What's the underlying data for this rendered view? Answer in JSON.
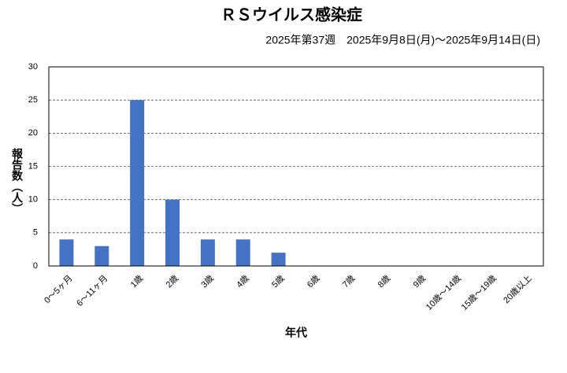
{
  "chart_data": {
    "type": "bar",
    "title": "ＲＳウイルス感染症",
    "subtitle": "2025年第37週　2025年9月8日(月)～2025年9月14日(日)",
    "x_label": "年代",
    "y_label": "報告数（人）",
    "categories": [
      "0～5ヶ月",
      "6～11ヶ月",
      "1歳",
      "2歳",
      "3歳",
      "4歳",
      "5歳",
      "6歳",
      "7歳",
      "8歳",
      "9歳",
      "10歳～14歳",
      "15歳～19歳",
      "20歳以上"
    ],
    "values": [
      4,
      3,
      25,
      10,
      4,
      4,
      2,
      0,
      0,
      0,
      0,
      0,
      0,
      0
    ],
    "color": "#4472c4",
    "ylim": [
      0,
      30
    ],
    "yticks": [
      0,
      5,
      10,
      15,
      20,
      25,
      30
    ],
    "grid": true
  }
}
